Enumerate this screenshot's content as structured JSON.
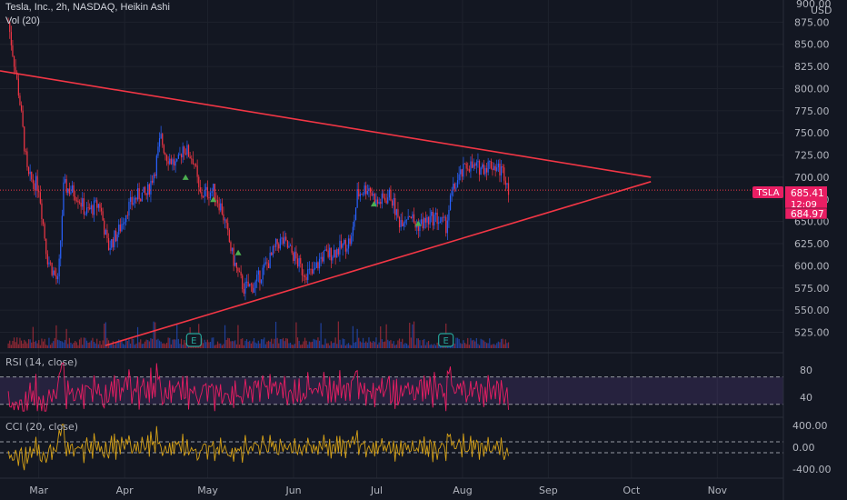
{
  "header": {
    "title": "Tesla, Inc., 2h, NASDAQ, Heikin Ashi",
    "volume_label": "Vol (20)"
  },
  "price_scale": {
    "currency": "USD",
    "top_label": "900.00"
  },
  "price_tag": {
    "symbol": "TSLA",
    "price": "685.41",
    "countdown": "12:09",
    "price2": "684.97",
    "color": "#e91e63"
  },
  "earnings_markers": [
    {
      "label": "E",
      "date": "2021-04-26"
    },
    {
      "label": "E",
      "date": "2021-07-26"
    }
  ],
  "colors": {
    "up": "#2962ff",
    "down": "#f23645",
    "trendline": "#f23645",
    "rsi_line": "#e91e63",
    "rsi_band": "#7e57c2",
    "cci_line": "#d4a017",
    "marker": "#4caf50",
    "background": "#131722"
  },
  "chart_data": [
    {
      "type": "candlestick",
      "title": "Tesla, Inc., 2h, NASDAQ, Heikin Ashi",
      "x_ticks": [
        "Mar",
        "Apr",
        "May",
        "Jun",
        "Jul",
        "Aug",
        "Sep",
        "Oct",
        "Nov"
      ],
      "y_ticks": [
        525,
        550,
        575,
        600,
        625,
        650,
        675,
        700,
        725,
        750,
        775,
        800,
        825,
        850,
        875
      ],
      "ylim": [
        505,
        900
      ],
      "series": [
        {
          "name": "TSLA",
          "points": [
            [
              "2021-02-18",
              875
            ],
            [
              "2021-02-22",
              790
            ],
            [
              "2021-02-25",
              700
            ],
            [
              "2021-03-01",
              690
            ],
            [
              "2021-03-04",
              610
            ],
            [
              "2021-03-08",
              580
            ],
            [
              "2021-03-10",
              690
            ],
            [
              "2021-03-15",
              680
            ],
            [
              "2021-03-18",
              660
            ],
            [
              "2021-03-23",
              670
            ],
            [
              "2021-03-26",
              620
            ],
            [
              "2021-03-30",
              640
            ],
            [
              "2021-04-02",
              665
            ],
            [
              "2021-04-06",
              680
            ],
            [
              "2021-04-09",
              680
            ],
            [
              "2021-04-12",
              710
            ],
            [
              "2021-04-14",
              745
            ],
            [
              "2021-04-16",
              725
            ],
            [
              "2021-04-20",
              712
            ],
            [
              "2021-04-22",
              735
            ],
            [
              "2021-04-26",
              720
            ],
            [
              "2021-04-28",
              680
            ],
            [
              "2021-05-03",
              685
            ],
            [
              "2021-05-06",
              665
            ],
            [
              "2021-05-10",
              610
            ],
            [
              "2021-05-12",
              590
            ],
            [
              "2021-05-14",
              575
            ],
            [
              "2021-05-18",
              578
            ],
            [
              "2021-05-20",
              590
            ],
            [
              "2021-05-24",
              610
            ],
            [
              "2021-05-26",
              625
            ],
            [
              "2021-05-28",
              628
            ],
            [
              "2021-06-01",
              612
            ],
            [
              "2021-06-04",
              595
            ],
            [
              "2021-06-08",
              590
            ],
            [
              "2021-06-11",
              610
            ],
            [
              "2021-06-15",
              615
            ],
            [
              "2021-06-18",
              620
            ],
            [
              "2021-06-22",
              630
            ],
            [
              "2021-06-24",
              680
            ],
            [
              "2021-06-28",
              690
            ],
            [
              "2021-07-01",
              670
            ],
            [
              "2021-07-06",
              680
            ],
            [
              "2021-07-09",
              650
            ],
            [
              "2021-07-13",
              660
            ],
            [
              "2021-07-15",
              645
            ],
            [
              "2021-07-19",
              650
            ],
            [
              "2021-07-22",
              655
            ],
            [
              "2021-07-26",
              645
            ],
            [
              "2021-07-28",
              680
            ],
            [
              "2021-07-30",
              695
            ],
            [
              "2021-08-03",
              715
            ],
            [
              "2021-08-05",
              710
            ],
            [
              "2021-08-09",
              712
            ],
            [
              "2021-08-11",
              715
            ],
            [
              "2021-08-13",
              712
            ],
            [
              "2021-08-16",
              705
            ],
            [
              "2021-08-18",
              685
            ]
          ]
        }
      ],
      "trendlines": [
        {
          "from": [
            "2021-02-15",
            820
          ],
          "to": [
            "2021-10-08",
            700
          ]
        },
        {
          "from": [
            "2021-03-25",
            510
          ],
          "to": [
            "2021-10-08",
            695
          ]
        }
      ],
      "horizontal_line": 685.41,
      "markers": [
        [
          "2021-04-23",
          700
        ],
        [
          "2021-05-03",
          675
        ],
        [
          "2021-05-12",
          615
        ],
        [
          "2021-06-30",
          670
        ],
        [
          "2021-07-16",
          648
        ]
      ]
    },
    {
      "type": "line",
      "title": "RSI (14, close)",
      "y_ticks": [
        40,
        80
      ],
      "bands": [
        30,
        70
      ],
      "ylim": [
        15,
        100
      ]
    },
    {
      "type": "line",
      "title": "CCI (20, close)",
      "y_ticks": [
        400,
        0,
        -400
      ],
      "bands": [
        100,
        -100
      ],
      "ylim": [
        -500,
        500
      ]
    }
  ]
}
